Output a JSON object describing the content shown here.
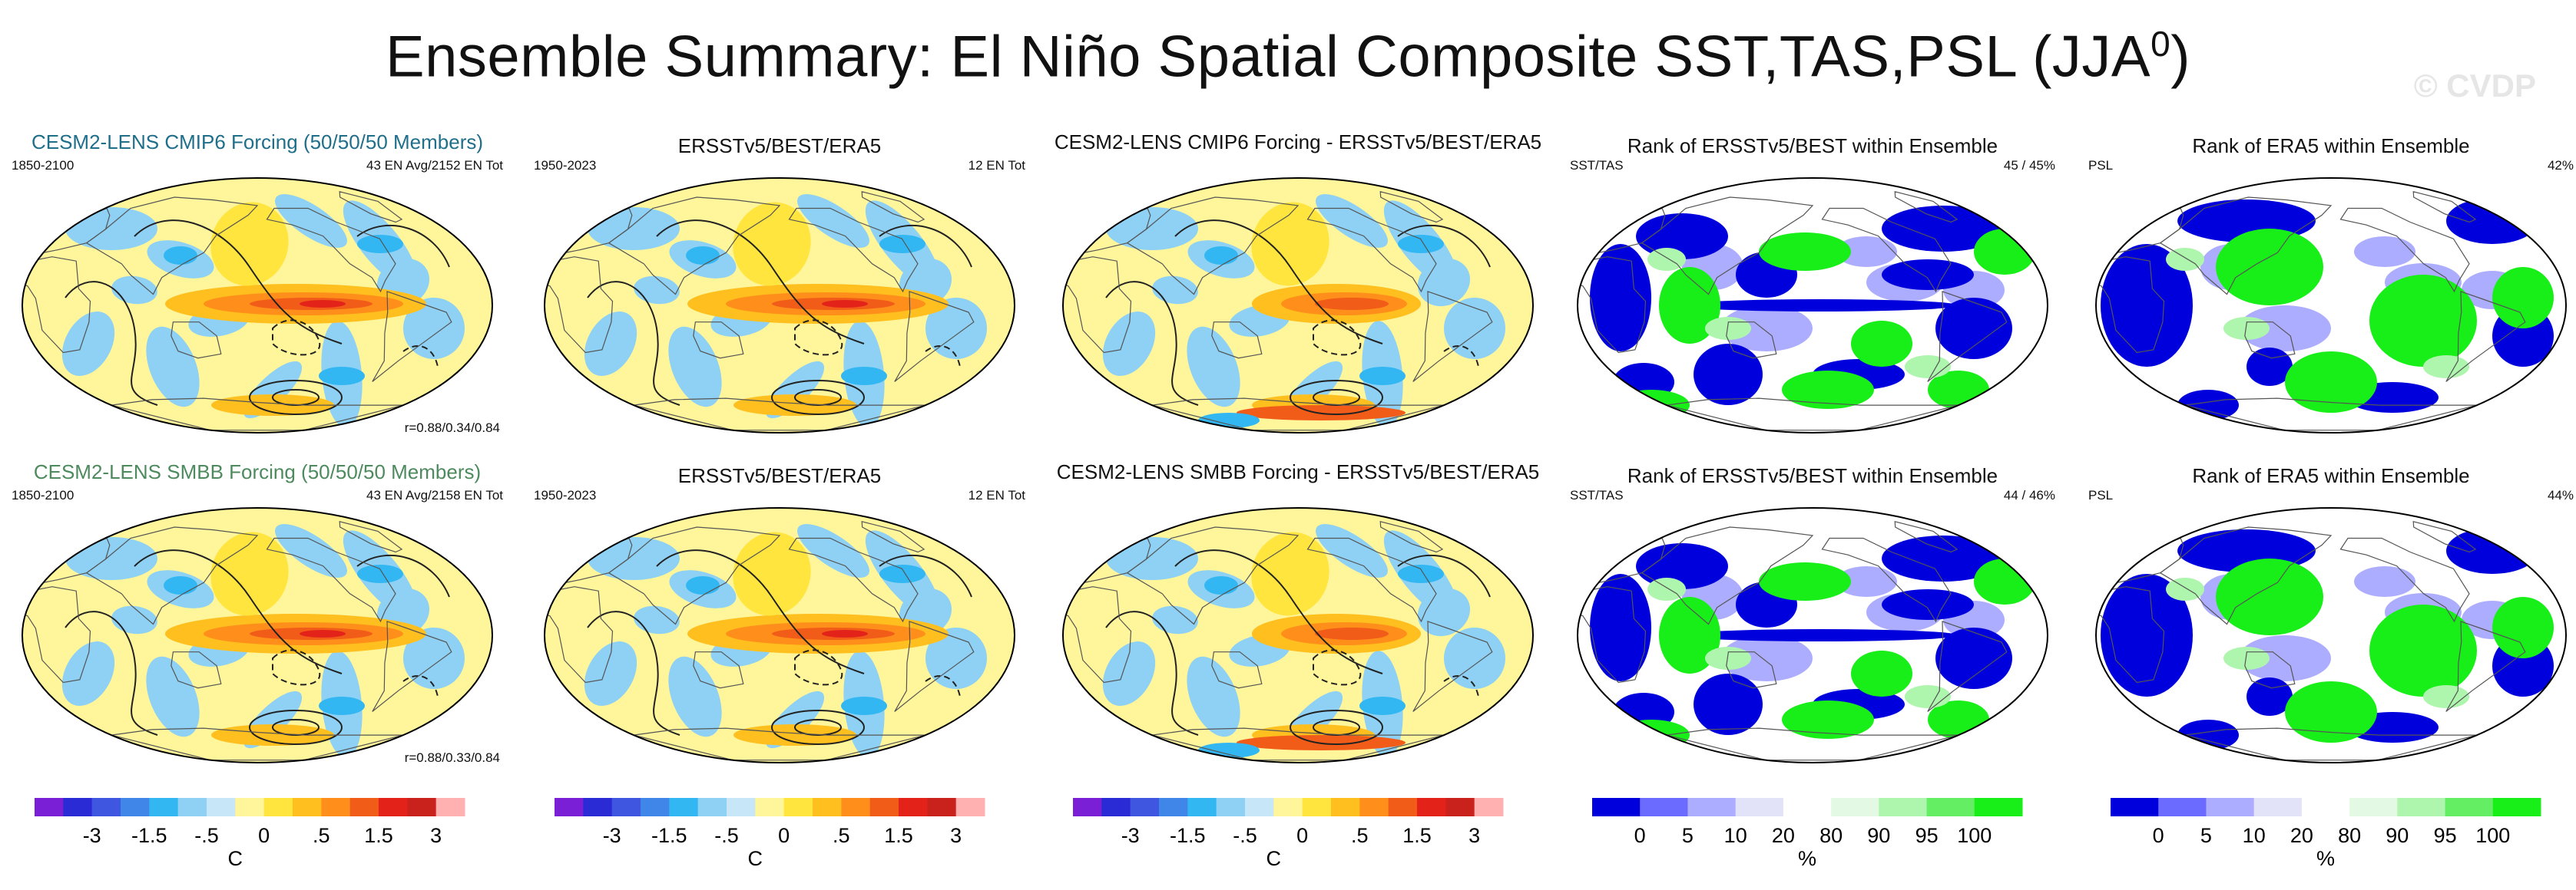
{
  "title": {
    "main": "Ensemble Summary: El Niño Spatial Composite SST,TAS,PSL (JJA",
    "sup": "0",
    "close": ")"
  },
  "watermark": "© CVDP",
  "colors": {
    "cmip6_title": "#1f6f8b",
    "smbb_title": "#4d8a5e",
    "ocean_base": "#fef17a",
    "rank_low": "#0000dd",
    "rank_high": "#18ee18"
  },
  "panels": {
    "r1c1": {
      "title": "CESM2-LENS CMIP6 Forcing (50/50/50 Members)",
      "left_label": "1850-2100",
      "right_label": "43 EN Avg/2152 EN Tot",
      "corner": "r=0.88/0.34/0.84"
    },
    "r1c2": {
      "title": "ERSSTv5/BEST/ERA5",
      "left_label": "1950-2023",
      "right_label": "12 EN Tot"
    },
    "r1c3": {
      "title": "CESM2-LENS CMIP6 Forcing - ERSSTv5/BEST/ERA5"
    },
    "r1c4": {
      "title": "Rank of ERSSTv5/BEST within Ensemble",
      "left_label": "SST/TAS",
      "right_label": "45 /  45%"
    },
    "r1c5": {
      "title": "Rank of ERA5 within Ensemble",
      "left_label": "PSL",
      "right_label": "42%"
    },
    "r2c1": {
      "title": "CESM2-LENS SMBB Forcing (50/50/50 Members)",
      "left_label": "1850-2100",
      "right_label": "43 EN Avg/2158 EN Tot",
      "corner": "r=0.88/0.33/0.84"
    },
    "r2c2": {
      "title": "ERSSTv5/BEST/ERA5",
      "left_label": "1950-2023",
      "right_label": "12 EN Tot"
    },
    "r2c3": {
      "title": "CESM2-LENS SMBB Forcing - ERSSTv5/BEST/ERA5"
    },
    "r2c4": {
      "title": "Rank of ERSSTv5/BEST within Ensemble",
      "left_label": "SST/TAS",
      "right_label": "44 /  46%"
    },
    "r2c5": {
      "title": "Rank of ERA5 within Ensemble",
      "left_label": "PSL",
      "right_label": "44%"
    }
  },
  "chart_data": [
    {
      "type": "heatmap",
      "name": "sst-composite-colorbar",
      "unit": "C",
      "colors": [
        "#7a1fd6",
        "#2b2bd6",
        "#3f57e0",
        "#3f86e8",
        "#33b7f2",
        "#8ed1f4",
        "#c7e6f7",
        "#fff59a",
        "#ffe53d",
        "#ffbf1f",
        "#ff8f1a",
        "#f25c19",
        "#e3231a",
        "#c9211c",
        "#ffb0b0"
      ],
      "tick_labels": [
        "-3",
        "-1.5",
        "-.5",
        "0",
        ".5",
        "1.5",
        "3"
      ],
      "tick_boundary_index": [
        2,
        4,
        6,
        8,
        10,
        12,
        14
      ],
      "panels_using": [
        "r1c1",
        "r1c2",
        "r1c3",
        "r2c1",
        "r2c2",
        "r2c3"
      ],
      "pattern": "El Niño warm tongue in eastern equatorial Pacific, max > 1.5 C"
    },
    {
      "type": "heatmap",
      "name": "rank-colorbar",
      "unit": "%",
      "colors": [
        "#0000dd",
        "#6b6bff",
        "#adadff",
        "#e2e2f8",
        "#ffffff",
        "#e3f9e3",
        "#aef5ae",
        "#64ee64",
        "#18ee18"
      ],
      "tick_labels": [
        "0",
        "5",
        "10",
        "20",
        "80",
        "90",
        "95",
        "100"
      ],
      "tick_boundary_index": [
        1,
        2,
        3,
        4,
        5,
        6,
        7,
        8
      ],
      "panels_using": [
        "r1c4",
        "r1c5",
        "r2c4",
        "r2c5"
      ]
    }
  ],
  "colorbars": {
    "sst": {
      "unit": "C",
      "ticks": [
        "-3",
        "-1.5",
        "-.5",
        "0",
        ".5",
        "1.5",
        "3"
      ]
    },
    "rank": {
      "unit": "%",
      "ticks": [
        "0",
        "5",
        "10",
        "20",
        "80",
        "90",
        "95",
        "100"
      ]
    }
  }
}
